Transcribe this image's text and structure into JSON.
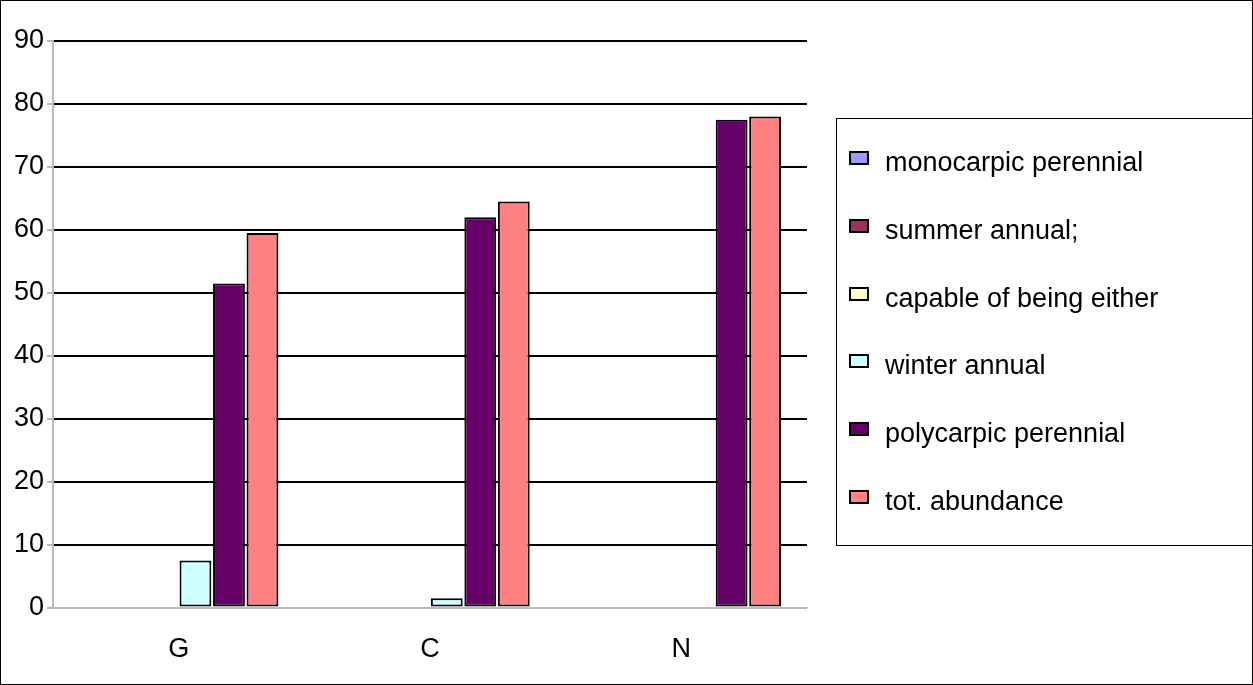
{
  "chart_data": {
    "type": "bar",
    "categories": [
      "G",
      "C",
      "N"
    ],
    "series": [
      {
        "name": "monocarpic perennial",
        "color": "#9999ff",
        "values": [
          null,
          0,
          null
        ]
      },
      {
        "name": "summer annual;",
        "color": "#993366",
        "values": [
          0,
          null,
          null
        ]
      },
      {
        "name": "capable of being either",
        "color": "#ffffcc",
        "values": [
          0,
          0,
          0
        ]
      },
      {
        "name": "winter annual",
        "color": "#ccffff",
        "values": [
          7.5,
          1.5,
          null
        ]
      },
      {
        "name": "polycarpic perennial",
        "color": "#660066",
        "values": [
          51.5,
          62,
          77.5
        ]
      },
      {
        "name": "tot. abundance",
        "color": "#ff8080",
        "values": [
          59.5,
          64.5,
          78
        ]
      }
    ],
    "ylim": [
      0,
      90
    ],
    "yticks": [
      0,
      10,
      20,
      30,
      40,
      50,
      60,
      70,
      80,
      90
    ],
    "grid": "y",
    "legend": "right"
  }
}
